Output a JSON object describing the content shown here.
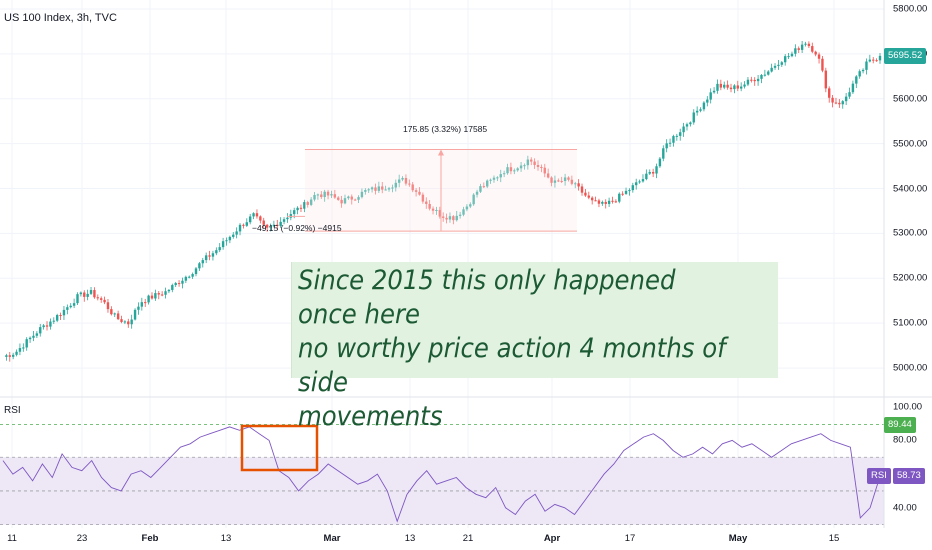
{
  "header": {
    "symbol": "US 100 Index, 3h, TVC"
  },
  "rsi_panel": {
    "label": "RSI"
  },
  "annotation": {
    "text": "Since 2015 this only happened once here\nno worthy price action 4 months of side\nmovements"
  },
  "measure": {
    "up_label": "175.85 (3.32%) 17585",
    "down_label": "−49.15 (−0.92%) −4915"
  },
  "badges": {
    "price": "5695.52",
    "rsi_upper": "89.44",
    "rsi_name": "RSI",
    "rsi_value": "58.73"
  },
  "colors": {
    "up": "#26a69a",
    "down": "#ef5350",
    "rsi_line": "#7e57c2",
    "rsi_band": "#ede7f6",
    "measure": "#f7a6a1",
    "box": "#e65100",
    "note_bg": "#e2f2e1",
    "note_text": "#1c5a34"
  },
  "chart_data": [
    {
      "type": "candlestick",
      "title": "US 100 Index, 3h, TVC",
      "ylim": [
        4940,
        5820
      ],
      "y_ticks": [
        5000,
        5100,
        5200,
        5300,
        5400,
        5500,
        5600,
        5700,
        5800
      ],
      "y_tick_labels": [
        "5000.00",
        "5100.00",
        "5200.00",
        "5300.00",
        "5400.00",
        "5500.00",
        "5600.00",
        "5700.00",
        "5800.00"
      ],
      "x_tick_labels": [
        "11",
        "23",
        "Feb",
        "13",
        "Mar",
        "13",
        "21",
        "Apr",
        "17",
        "May",
        "15"
      ],
      "x_tick_bold": [
        "Feb",
        "Mar",
        "Apr",
        "May"
      ],
      "last_price": 5695.52,
      "key_prices": [
        [
          5025,
          5035,
          5062,
          5088,
          5108,
          5132,
          5160,
          5168,
          5148,
          5112,
          5100,
          5148,
          5160,
          5170,
          5192,
          5212,
          5240,
          5262,
          5290,
          5318,
          5340,
          5308,
          5325,
          5345,
          5362,
          5388,
          5385,
          5372,
          5380,
          5395,
          5400,
          5408,
          5420,
          5395,
          5360,
          5340,
          5335,
          5360,
          5400,
          5418,
          5440,
          5448,
          5465,
          5440,
          5412,
          5420,
          5398,
          5370,
          5362,
          5378,
          5398,
          5420,
          5442,
          5500,
          5528,
          5558,
          5595,
          5630,
          5622,
          5630,
          5645,
          5660,
          5685,
          5700,
          5728,
          5700,
          5596,
          5590,
          5640,
          5680,
          5695.52
        ]
      ],
      "measure_range": {
        "low": 5305,
        "high": 5487
      }
    },
    {
      "type": "line",
      "title": "RSI",
      "ylim": [
        28,
        104
      ],
      "y_ticks": [
        40,
        80,
        100
      ],
      "y_tick_labels": [
        "40.00",
        "80.00",
        "100.00"
      ],
      "levels": [
        30,
        50,
        70,
        89.44
      ],
      "last_value": 58.73,
      "values": [
        68,
        60,
        64,
        56,
        66,
        58,
        72,
        64,
        62,
        68,
        58,
        52,
        50,
        60,
        62,
        58,
        64,
        70,
        76,
        78,
        82,
        84,
        86,
        88,
        86,
        88,
        84,
        80,
        62,
        58,
        50,
        56,
        60,
        66,
        62,
        58,
        54,
        56,
        60,
        50,
        32,
        48,
        56,
        62,
        54,
        56,
        58,
        52,
        48,
        46,
        52,
        40,
        36,
        44,
        48,
        38,
        42,
        40,
        36,
        44,
        52,
        60,
        66,
        74,
        78,
        82,
        84,
        80,
        74,
        70,
        72,
        76,
        72,
        78,
        80,
        76,
        78,
        74,
        70,
        74,
        78,
        80,
        82,
        84,
        80,
        78,
        76,
        34,
        40,
        58.73
      ]
    }
  ]
}
